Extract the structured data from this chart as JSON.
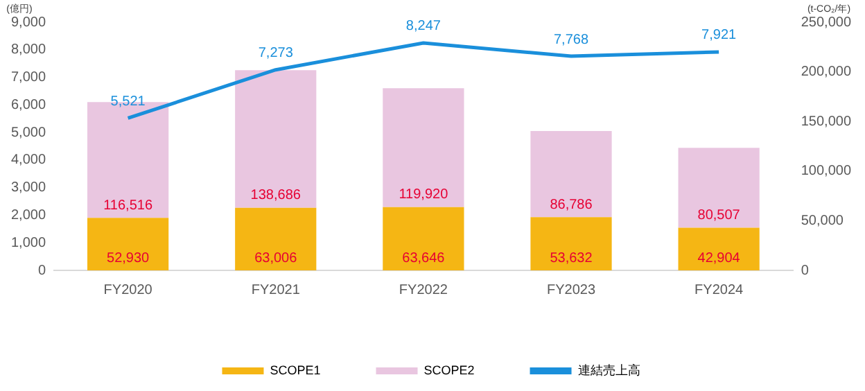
{
  "chart_data": {
    "type": "bar",
    "stacked": true,
    "categories": [
      "FY2020",
      "FY2021",
      "FY2022",
      "FY2023",
      "FY2024"
    ],
    "series": [
      {
        "name": "SCOPE1",
        "axis": "y2",
        "color": "#f5b614",
        "values": [
          52930,
          63006,
          63646,
          53632,
          42904
        ],
        "value_labels": [
          "52,930",
          "63,006",
          "63,646",
          "53,632",
          "42,904"
        ]
      },
      {
        "name": "SCOPE2",
        "axis": "y2",
        "color": "#e9c6e0",
        "values": [
          116516,
          138686,
          119920,
          86786,
          80507
        ],
        "value_labels": [
          "116,516",
          "138,686",
          "119,920",
          "86,786",
          "80,507"
        ]
      },
      {
        "name": "連結売上高",
        "type": "line",
        "axis": "y",
        "color": "#1a8fdb",
        "values": [
          5521,
          7273,
          8247,
          7768,
          7921
        ],
        "value_labels": [
          "5,521",
          "7,273",
          "8,247",
          "7,768",
          "7,921"
        ]
      }
    ],
    "ylabel": "(億円)",
    "y2label": "(t-CO₂/年)",
    "ylim": [
      0,
      9000
    ],
    "yticks": [
      0,
      {
        "value": 1000,
        "label": "1,000"
      },
      {
        "value": 2000,
        "label": "2,000"
      },
      {
        "value": 3000,
        "label": "3,000"
      },
      {
        "value": 4000,
        "label": "4,000"
      },
      {
        "value": 5000,
        "label": "5,000"
      },
      {
        "value": 6000,
        "label": "6,000"
      },
      {
        "value": 7000,
        "label": "7,000"
      },
      {
        "value": 8000,
        "label": "8,000"
      },
      {
        "value": 9000,
        "label": "9,000"
      }
    ],
    "y2lim": [
      0,
      250000
    ],
    "y2ticks": [
      0,
      {
        "value": 50000,
        "label": "50,000"
      },
      {
        "value": 100000,
        "label": "100,000"
      },
      {
        "value": 150000,
        "label": "150,000"
      },
      {
        "value": 200000,
        "label": "200,000"
      },
      {
        "value": 250000,
        "label": "250,000"
      }
    ],
    "grid": false,
    "legend": "bottom",
    "marker": "none"
  }
}
